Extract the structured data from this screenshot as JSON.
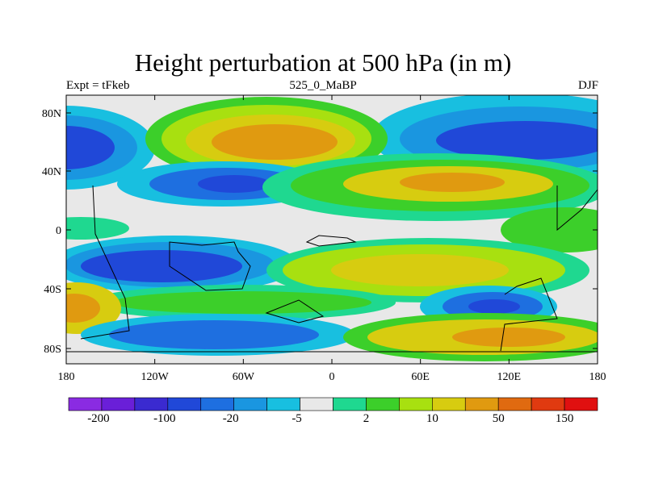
{
  "title": "Height perturbation at 500 hPa (in m)",
  "left_string": "Expt = tFkeb",
  "center_string": "525_0_MaBP",
  "right_string": "DJF",
  "axes": {
    "y_labels": [
      "80N",
      "40N",
      "0",
      "40S",
      "80S"
    ],
    "x_labels": [
      "180",
      "120W",
      "60W",
      "0",
      "60E",
      "120E",
      "180"
    ]
  },
  "colorbar": {
    "colors": [
      "#8a2be2",
      "#6a1fd8",
      "#3a2ad0",
      "#2048d8",
      "#1e6fe0",
      "#1a96e0",
      "#18bfe0",
      "#e8e8e8",
      "#1fd890",
      "#3ccf2a",
      "#a8e010",
      "#d7cc10",
      "#e09a10",
      "#e06a10",
      "#e03a10",
      "#e01010"
    ],
    "labels": [
      "-200",
      "-100",
      "-20",
      "-5",
      "2",
      "10",
      "50",
      "150"
    ]
  },
  "colors": {
    "neutral": "#e8e8e8",
    "pos_1": "#1fd890",
    "pos_2": "#3ccf2a",
    "pos_3": "#a8e010",
    "pos_4": "#d7cc10",
    "pos_5": "#e09a10",
    "neg_1": "#18bfe0",
    "neg_2": "#1a96e0",
    "neg_3": "#1e6fe0",
    "neg_4": "#2048d8"
  }
}
